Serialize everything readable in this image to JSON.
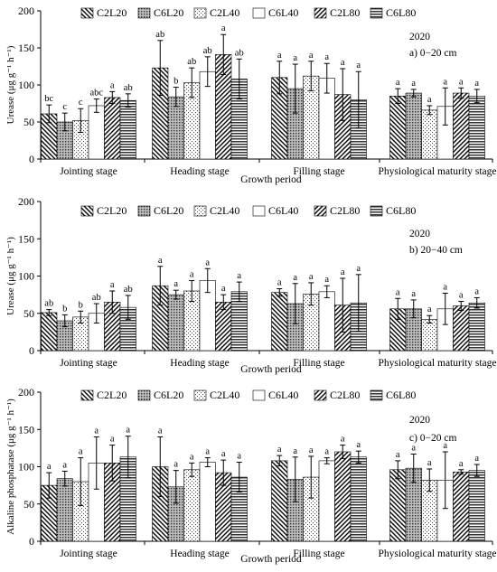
{
  "figure": {
    "series_names": [
      "C2L20",
      "C6L20",
      "C2L40",
      "C6L40",
      "C2L80",
      "C6L80"
    ],
    "series_patterns": [
      "diag-back",
      "dots-dense",
      "dots-sparse",
      "white",
      "diag-fwd",
      "hlines"
    ],
    "categories": [
      "Jointing stage",
      "Heading stage",
      "Filling stage",
      "Physiological maturity stage"
    ],
    "xlabel": "Growth period"
  },
  "chart_data": [
    {
      "type": "bar",
      "panel": "a",
      "ylabel": "Urease (μg g⁻¹ h⁻¹)",
      "year": "2020",
      "panel_label": "a) 0−20 cm",
      "ylim": [
        0,
        200
      ],
      "yticks": [
        0,
        50,
        100,
        150,
        200
      ],
      "categories": [
        "Jointing stage",
        "Heading stage",
        "Filling stage",
        "Physiological maturity stage"
      ],
      "series": [
        {
          "name": "C2L20",
          "values": [
            61,
            123,
            110,
            85
          ],
          "errors": [
            12,
            37,
            22,
            10
          ],
          "letters": [
            "bc",
            "ab",
            "a",
            "a"
          ]
        },
        {
          "name": "C6L20",
          "values": [
            50,
            84,
            95,
            89
          ],
          "errors": [
            12,
            13,
            33,
            5
          ],
          "letters": [
            "c",
            "b",
            "a",
            "a"
          ]
        },
        {
          "name": "C2L40",
          "values": [
            52,
            103,
            112,
            66
          ],
          "errors": [
            16,
            20,
            20,
            6
          ],
          "letters": [
            "c",
            "ab",
            "a",
            "a"
          ]
        },
        {
          "name": "C6L40",
          "values": [
            72,
            118,
            109,
            71
          ],
          "errors": [
            9,
            20,
            20,
            25
          ],
          "letters": [
            "abc",
            "ab",
            "a",
            "a"
          ]
        },
        {
          "name": "C2L80",
          "values": [
            83,
            141,
            87,
            89
          ],
          "errors": [
            8,
            27,
            35,
            7
          ],
          "letters": [
            "a",
            "a",
            "a",
            "a"
          ]
        },
        {
          "name": "C6L80",
          "values": [
            79,
            108,
            80,
            85
          ],
          "errors": [
            9,
            27,
            38,
            9
          ],
          "letters": [
            "ab",
            "ab",
            "a",
            "a"
          ]
        }
      ]
    },
    {
      "type": "bar",
      "panel": "b",
      "ylabel": "Urease (μg g⁻¹ h⁻¹)",
      "year": "2020",
      "panel_label": "b) 20−40 cm",
      "ylim": [
        0,
        200
      ],
      "yticks": [
        0,
        50,
        100,
        150,
        200
      ],
      "categories": [
        "Jointing stage",
        "Heading stage",
        "Filling stage",
        "Physiological maturity stage"
      ],
      "series": [
        {
          "name": "C2L20",
          "values": [
            51,
            87,
            78,
            56
          ],
          "errors": [
            4,
            26,
            5,
            14
          ],
          "letters": [
            "ab",
            "a",
            "a",
            "a"
          ]
        },
        {
          "name": "C6L20",
          "values": [
            40,
            75,
            63,
            56
          ],
          "errors": [
            8,
            6,
            27,
            12
          ],
          "letters": [
            "b",
            "a",
            "a",
            "a"
          ]
        },
        {
          "name": "C2L40",
          "values": [
            45,
            80,
            76,
            42
          ],
          "errors": [
            8,
            14,
            15,
            5
          ],
          "letters": [
            "b",
            "a",
            "a",
            "a"
          ]
        },
        {
          "name": "C6L40",
          "values": [
            50,
            94,
            79,
            56
          ],
          "errors": [
            13,
            16,
            8,
            21
          ],
          "letters": [
            "ab",
            "a",
            "a",
            "a"
          ]
        },
        {
          "name": "C2L80",
          "values": [
            65,
            65,
            61,
            60
          ],
          "errors": [
            15,
            10,
            36,
            6
          ],
          "letters": [
            "a",
            "a",
            "a",
            "a"
          ]
        },
        {
          "name": "C6L80",
          "values": [
            58,
            79,
            64,
            64
          ],
          "errors": [
            16,
            13,
            38,
            7
          ],
          "letters": [
            "ab",
            "a",
            "a",
            "a"
          ]
        }
      ]
    },
    {
      "type": "bar",
      "panel": "c",
      "ylabel": "Alkaline phosphatase (μg g⁻¹ h⁻¹)",
      "year": "2020",
      "panel_label": "c) 0−20 cm",
      "ylim": [
        0,
        200
      ],
      "yticks": [
        0,
        50,
        100,
        150,
        200
      ],
      "categories": [
        "Jointing stage",
        "Heading stage",
        "Filling stage",
        "Physiological maturity stage"
      ],
      "series": [
        {
          "name": "C2L20",
          "values": [
            75,
            100,
            108,
            96
          ],
          "errors": [
            17,
            40,
            7,
            12
          ],
          "letters": [
            "a",
            "a",
            "a",
            "a"
          ]
        },
        {
          "name": "C6L20",
          "values": [
            84,
            73,
            83,
            98
          ],
          "errors": [
            10,
            22,
            30,
            19
          ],
          "letters": [
            "a",
            "a",
            "a",
            "a"
          ]
        },
        {
          "name": "C2L40",
          "values": [
            80,
            96,
            86,
            82
          ],
          "errors": [
            32,
            9,
            28,
            15
          ],
          "letters": [
            "a",
            "a",
            "a",
            "a"
          ]
        },
        {
          "name": "C6L40",
          "values": [
            105,
            106,
            108,
            82
          ],
          "errors": [
            35,
            6,
            4,
            38
          ],
          "letters": [
            "a",
            "a",
            "a",
            "a"
          ]
        },
        {
          "name": "C2L80",
          "values": [
            105,
            92,
            120,
            93
          ],
          "errors": [
            24,
            17,
            9,
            3
          ],
          "letters": [
            "a",
            "a",
            "a",
            "a"
          ]
        },
        {
          "name": "C6L80",
          "values": [
            113,
            86,
            113,
            95
          ],
          "errors": [
            28,
            20,
            8,
            8
          ],
          "letters": [
            "a",
            "a",
            "a",
            "a"
          ]
        }
      ]
    }
  ]
}
